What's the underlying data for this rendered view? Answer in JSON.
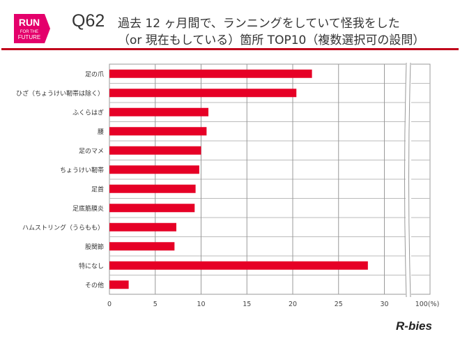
{
  "header": {
    "logo_text": "RUN FOR THE FUTURE",
    "question_no": "Q62",
    "title_line1": "過去 12 ヶ月間で、ランニングをしていて怪我をした",
    "title_line2": "（or 現在もしている）箇所 TOP10（複数選択可の設問）"
  },
  "brand": "R-bies",
  "colors": {
    "bar": "#e60026",
    "rule": "#c0001a"
  },
  "chart_data": {
    "type": "bar",
    "orientation": "horizontal",
    "categories": [
      "足の爪",
      "ひざ（ちょうけい靭帯は除く）",
      "ふくらはぎ",
      "腰",
      "足のマメ",
      "ちょうけい靭帯",
      "足首",
      "足底筋膜炎",
      "ハムストリング（うらもも）",
      "股関節",
      "特になし",
      "その他"
    ],
    "values": [
      22.1,
      20.4,
      10.8,
      10.6,
      10.0,
      9.8,
      9.4,
      9.3,
      7.3,
      7.1,
      28.2,
      2.1
    ],
    "xticks": [
      "0",
      "5",
      "10",
      "15",
      "20",
      "25",
      "30",
      "100(%)"
    ],
    "xlim": [
      0,
      100
    ],
    "axis_break": [
      30,
      100
    ],
    "grid": true,
    "unit": "%"
  }
}
